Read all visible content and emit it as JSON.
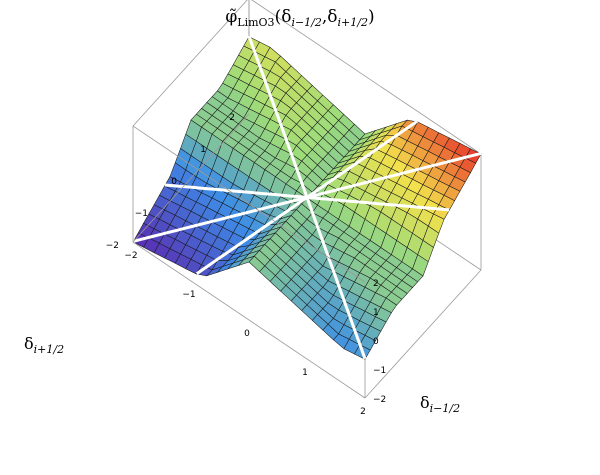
{
  "chart_data": {
    "type": "surface3d",
    "title": "φ̃_LimO3(δ_{i−1/2},δ_{i+1/2})",
    "title_main": "φ̃",
    "title_sub": "LimO3",
    "title_args": "(δ",
    "title_arg1_sub": "i−1/2",
    "title_comma": ",δ",
    "title_arg2_sub": "i+1/2",
    "title_close": ")",
    "xlabel_main": "δ",
    "xlabel_sub": "i−1/2",
    "ylabel_main": "δ",
    "ylabel_sub": "i+1/2",
    "x_range": [
      -2,
      2
    ],
    "y_range": [
      -2,
      2
    ],
    "z_range": [
      -2,
      2
    ],
    "x_ticks": [
      "−2",
      "−1",
      "0",
      "1",
      "2"
    ],
    "y_ticks": [
      "−2",
      "−1",
      "0",
      "1",
      "2"
    ],
    "z_ticks": [
      "−2",
      "−1",
      "0",
      "1",
      "2"
    ],
    "grid": "box",
    "colormap": "rainbow",
    "colors": {
      "z_low": "#5a2bb0",
      "z_mid_low": "#3d8ee8",
      "z_mid": "#9edc7a",
      "z_mid_high": "#f2e04c",
      "z_high": "#e8302a"
    }
  }
}
